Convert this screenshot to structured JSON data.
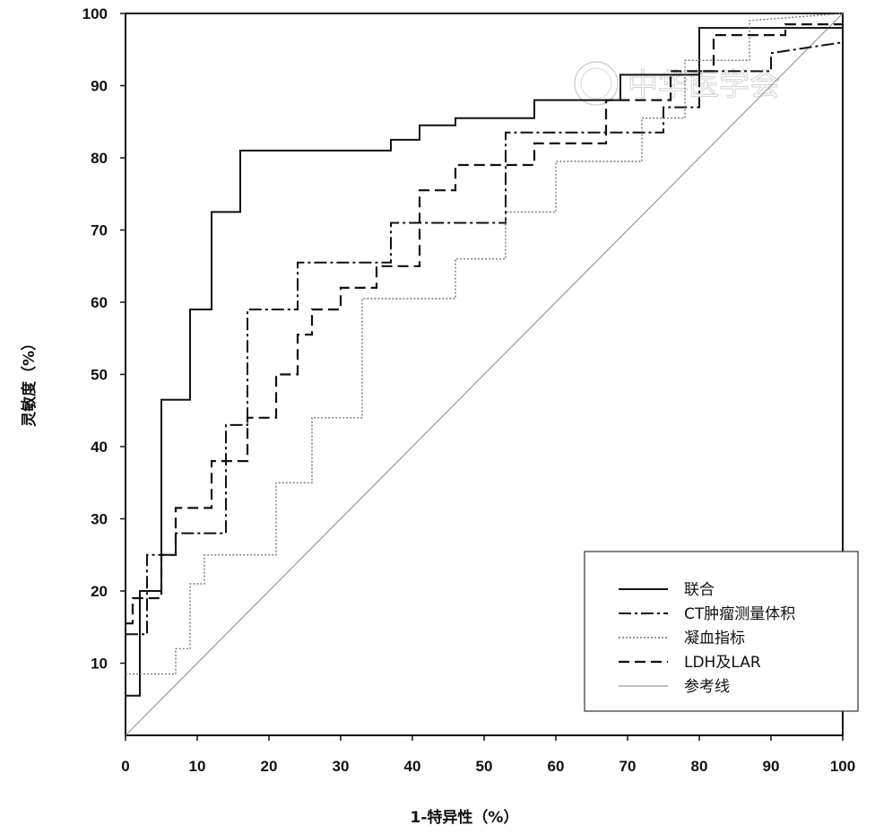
{
  "chart_data": {
    "type": "line",
    "step": true,
    "xlabel": "1-特异性（%）",
    "ylabel": "灵敏度（%）",
    "xlim": [
      0,
      100
    ],
    "ylim": [
      0,
      100
    ],
    "x_ticks": [
      "0",
      "10",
      "20",
      "30",
      "40",
      "50",
      "60",
      "70",
      "80",
      "90",
      "100"
    ],
    "y_ticks": [
      "10",
      "20",
      "30",
      "40",
      "50",
      "60",
      "70",
      "80",
      "90",
      "100"
    ],
    "grid": false,
    "legend_position": "bottom-right",
    "watermark": "中华医学会",
    "series": [
      {
        "name": "联合",
        "style": "solid",
        "color": "#111111",
        "x": [
          0,
          2,
          2,
          5,
          5,
          9,
          9,
          12,
          12,
          16,
          16,
          37,
          37,
          41,
          41,
          46,
          46,
          57,
          57,
          69,
          69,
          80,
          80,
          100
        ],
        "y": [
          5.5,
          5.5,
          20,
          20,
          46.5,
          46.5,
          59,
          59,
          72.5,
          72.5,
          81,
          81,
          82.5,
          82.5,
          84.5,
          84.5,
          85.5,
          85.5,
          88,
          88,
          91.5,
          91.5,
          98,
          98
        ]
      },
      {
        "name": "CT肿瘤测量体积",
        "style": "dashdot",
        "color": "#111111",
        "x": [
          0,
          3,
          3,
          7,
          7,
          14,
          14,
          17,
          17,
          24,
          24,
          37,
          37,
          53,
          53,
          75,
          75,
          80,
          80,
          90,
          90,
          100
        ],
        "y": [
          14,
          14,
          25,
          25,
          28,
          28,
          43,
          43,
          59,
          59,
          65.5,
          65.5,
          71,
          71,
          83.5,
          83.5,
          87,
          87,
          92,
          92,
          94.5,
          96
        ]
      },
      {
        "name": "凝血指标",
        "style": "dotted",
        "color": "#777777",
        "x": [
          0,
          7,
          7,
          9,
          9,
          11,
          11,
          21,
          21,
          26,
          26,
          33,
          33,
          46,
          46,
          53,
          53,
          60,
          60,
          72,
          72,
          78,
          78,
          87,
          87,
          100
        ],
        "y": [
          8.5,
          8.5,
          12,
          12,
          21,
          21,
          25,
          25,
          35,
          35,
          44,
          44,
          60.5,
          60.5,
          66,
          66,
          72.5,
          72.5,
          79.5,
          79.5,
          85.5,
          85.5,
          93.5,
          93.5,
          99,
          100
        ]
      },
      {
        "name": "LDH及LAR",
        "style": "dashed",
        "color": "#111111",
        "x": [
          0,
          1,
          1,
          5,
          5,
          7,
          7,
          12,
          12,
          17,
          17,
          21,
          21,
          24,
          24,
          26,
          26,
          30,
          30,
          35,
          35,
          41,
          41,
          46,
          46,
          57,
          57,
          67,
          67,
          76,
          76,
          82,
          82,
          92,
          92,
          100
        ],
        "y": [
          15.5,
          15.5,
          19,
          19,
          25,
          25,
          31.5,
          31.5,
          38,
          38,
          44,
          44,
          50,
          50,
          55.5,
          55.5,
          59,
          59,
          62,
          62,
          65,
          65,
          75.5,
          75.5,
          79,
          79,
          82,
          82,
          88,
          88,
          92,
          92,
          97,
          97,
          98.5,
          98.5
        ]
      },
      {
        "name": "参考线",
        "style": "reference",
        "color": "#999999",
        "x": [
          0,
          100
        ],
        "y": [
          0,
          100
        ]
      }
    ]
  }
}
